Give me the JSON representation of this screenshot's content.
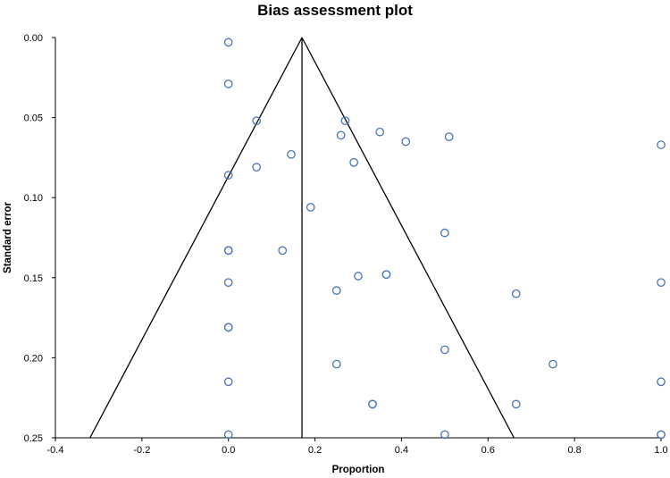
{
  "colors": {
    "point_stroke": "#4a74b4",
    "funnel_line": "#000000",
    "axis_line": "#000000"
  },
  "chart_data": {
    "type": "scatter",
    "title": "Bias assessment plot",
    "xlabel": "Proportion",
    "ylabel": "Standard error",
    "xlim": [
      -0.4,
      1.0
    ],
    "ylim": [
      0.0,
      0.25
    ],
    "y_inverted": true,
    "grid": false,
    "legend": "none",
    "x_ticks": [
      -0.4,
      -0.2,
      0.0,
      0.2,
      0.4,
      0.6,
      0.8,
      1.0
    ],
    "x_tick_labels": [
      "-0.4",
      "-0.2",
      "0.0",
      "0.2",
      "0.4",
      "0.6",
      "0.8",
      "1.0"
    ],
    "y_ticks": [
      0.0,
      0.05,
      0.1,
      0.15,
      0.2,
      0.25
    ],
    "y_tick_labels": [
      "0.00",
      "0.05",
      "0.10",
      "0.15",
      "0.20",
      "0.25"
    ],
    "pooled_estimate": 0.17,
    "funnel": {
      "apex": [
        0.17,
        0.0
      ],
      "left_base": [
        -0.32,
        0.25
      ],
      "right_base": [
        0.66,
        0.25
      ]
    },
    "points": [
      {
        "x": 0.0,
        "y": 0.003
      },
      {
        "x": 0.0,
        "y": 0.029
      },
      {
        "x": 0.065,
        "y": 0.052
      },
      {
        "x": 0.27,
        "y": 0.052
      },
      {
        "x": 0.26,
        "y": 0.061
      },
      {
        "x": 0.35,
        "y": 0.059
      },
      {
        "x": 0.41,
        "y": 0.065
      },
      {
        "x": 0.51,
        "y": 0.062
      },
      {
        "x": 1.0,
        "y": 0.067
      },
      {
        "x": 0.145,
        "y": 0.073
      },
      {
        "x": 0.065,
        "y": 0.081
      },
      {
        "x": 0.29,
        "y": 0.078
      },
      {
        "x": 0.0,
        "y": 0.086
      },
      {
        "x": 0.19,
        "y": 0.106
      },
      {
        "x": 0.5,
        "y": 0.122
      },
      {
        "x": 0.0,
        "y": 0.133
      },
      {
        "x": 0.0,
        "y": 0.133
      },
      {
        "x": 0.125,
        "y": 0.133
      },
      {
        "x": 0.3,
        "y": 0.149
      },
      {
        "x": 0.365,
        "y": 0.148
      },
      {
        "x": 0.365,
        "y": 0.148
      },
      {
        "x": 0.0,
        "y": 0.153
      },
      {
        "x": 0.25,
        "y": 0.158
      },
      {
        "x": 0.665,
        "y": 0.16
      },
      {
        "x": 1.0,
        "y": 0.153
      },
      {
        "x": 0.0,
        "y": 0.181
      },
      {
        "x": 0.0,
        "y": 0.181
      },
      {
        "x": 0.5,
        "y": 0.195
      },
      {
        "x": 0.25,
        "y": 0.204
      },
      {
        "x": 0.75,
        "y": 0.204
      },
      {
        "x": 0.0,
        "y": 0.215
      },
      {
        "x": 1.0,
        "y": 0.215
      },
      {
        "x": 0.333,
        "y": 0.229
      },
      {
        "x": 0.333,
        "y": 0.229
      },
      {
        "x": 0.665,
        "y": 0.229
      },
      {
        "x": 0.0,
        "y": 0.248
      },
      {
        "x": 0.5,
        "y": 0.248
      },
      {
        "x": 1.0,
        "y": 0.248
      },
      {
        "x": 1.0,
        "y": 0.248
      }
    ]
  }
}
